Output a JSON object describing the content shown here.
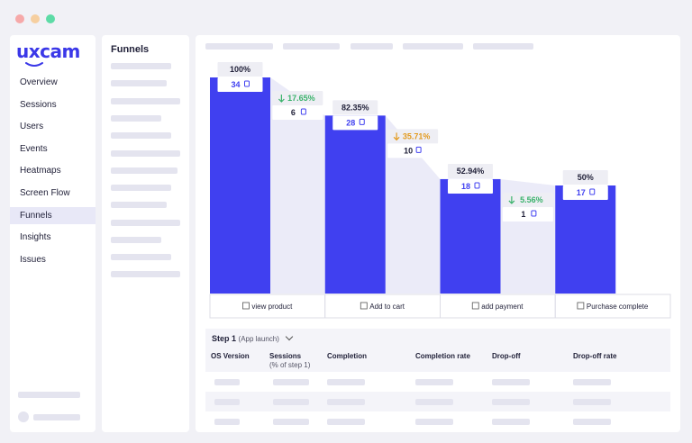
{
  "app": {
    "logo": "uxcam",
    "colors": {
      "accent": "#3b38e8",
      "drop_green": "#3ab26b",
      "drop_orange": "#e39a1e"
    }
  },
  "window_controls": [
    {
      "name": "close",
      "color": "#f6a9a9"
    },
    {
      "name": "minimize",
      "color": "#f6cfa0"
    },
    {
      "name": "maximize",
      "color": "#5ddba6"
    }
  ],
  "sidebar": {
    "items": [
      {
        "label": "Overview",
        "active": false
      },
      {
        "label": "Sessions",
        "active": false
      },
      {
        "label": "Users",
        "active": false
      },
      {
        "label": "Events",
        "active": false
      },
      {
        "label": "Heatmaps",
        "active": false
      },
      {
        "label": "Screen Flow",
        "active": false
      },
      {
        "label": "Funnels",
        "active": true
      },
      {
        "label": "Insights",
        "active": false
      },
      {
        "label": "Issues",
        "active": false
      }
    ]
  },
  "funnels_panel": {
    "title": "Funnels"
  },
  "chart_data": {
    "type": "bar",
    "categories": [
      "view product",
      "Add to cart",
      "add payment",
      "Purchase complete"
    ],
    "conversion_pct": [
      100,
      82.35,
      52.94,
      50
    ],
    "conversion_labels": [
      "100%",
      "82.35%",
      "52.94%",
      "50%"
    ],
    "counts": [
      34,
      28,
      18,
      17
    ],
    "dropoffs": [
      {
        "pct_label": "17.65%",
        "count": 6,
        "color": "#3ab26b"
      },
      {
        "pct_label": "35.71%",
        "count": 10,
        "color": "#e39a1e"
      },
      {
        "pct_label": "5.56%",
        "count": 1,
        "color": "#3ab26b"
      }
    ],
    "ylim": [
      0,
      100
    ],
    "bar_color": "#4040f0",
    "dropoff_fill": "#ebebf8"
  },
  "step": {
    "title": "Step 1",
    "subtitle": "(App launch)"
  },
  "table": {
    "headers": [
      {
        "label": "OS Version",
        "sub": ""
      },
      {
        "label": "Sessions",
        "sub": "(% of step 1)"
      },
      {
        "label": "Completion",
        "sub": ""
      },
      {
        "label": "Completion rate",
        "sub": ""
      },
      {
        "label": "Drop-off",
        "sub": ""
      },
      {
        "label": "Drop-off rate",
        "sub": ""
      }
    ]
  }
}
